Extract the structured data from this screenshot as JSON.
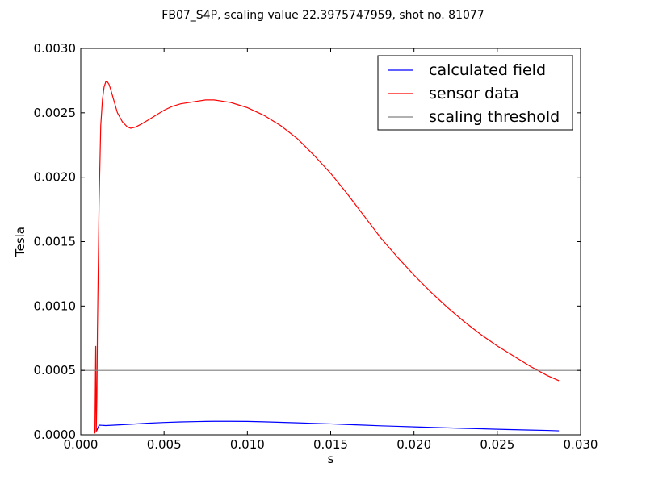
{
  "chart_data": {
    "type": "line",
    "title": "FB07_S4P, scaling value 22.3975747959, shot no. 81077",
    "xlabel": "s",
    "ylabel": "Tesla",
    "xlim": [
      0.0,
      0.03
    ],
    "ylim": [
      0.0,
      0.003
    ],
    "xticks": [
      "0.000",
      "0.005",
      "0.010",
      "0.015",
      "0.020",
      "0.025",
      "0.030"
    ],
    "yticks": [
      "0.0000",
      "0.0005",
      "0.0010",
      "0.0015",
      "0.0020",
      "0.0025",
      "0.0030"
    ],
    "grid": false,
    "legend_position": "top-right",
    "series": [
      {
        "name": "calculated field",
        "color": "#0000ff",
        "x": [
          0.00095,
          0.0011,
          0.0015,
          0.002,
          0.003,
          0.004,
          0.005,
          0.006,
          0.007,
          0.008,
          0.009,
          0.01,
          0.011,
          0.012,
          0.013,
          0.014,
          0.015,
          0.016,
          0.017,
          0.018,
          0.019,
          0.02,
          0.021,
          0.022,
          0.023,
          0.024,
          0.025,
          0.026,
          0.027,
          0.028,
          0.0287
        ],
        "y": [
          3e-05,
          7.5e-05,
          7.2e-05,
          7.5e-05,
          8.2e-05,
          9e-05,
          9.6e-05,
          0.0001,
          0.000103,
          0.000105,
          0.000105,
          0.000104,
          0.000101,
          9.7e-05,
          9.3e-05,
          8.9e-05,
          8.5e-05,
          8e-05,
          7.5e-05,
          7e-05,
          6.6e-05,
          6.2e-05,
          5.8e-05,
          5.4e-05,
          5e-05,
          4.7e-05,
          4.3e-05,
          4e-05,
          3.7e-05,
          3.4e-05,
          3.1e-05
        ]
      },
      {
        "name": "sensor data",
        "color": "#ff0000",
        "x": [
          0.00085,
          0.0009,
          0.00093,
          0.00097,
          0.001,
          0.0011,
          0.0012,
          0.0013,
          0.0014,
          0.0015,
          0.0016,
          0.0017,
          0.0018,
          0.002,
          0.0022,
          0.0025,
          0.0028,
          0.003,
          0.0033,
          0.0036,
          0.004,
          0.0045,
          0.005,
          0.0055,
          0.006,
          0.0065,
          0.007,
          0.0075,
          0.008,
          0.0085,
          0.009,
          0.0095,
          0.01,
          0.011,
          0.012,
          0.013,
          0.014,
          0.015,
          0.016,
          0.017,
          0.018,
          0.019,
          0.02,
          0.021,
          0.022,
          0.023,
          0.024,
          0.025,
          0.026,
          0.027,
          0.028,
          0.0287
        ],
        "y": [
          1e-05,
          0.00069,
          2e-05,
          0.0003,
          0.0008,
          0.0018,
          0.0024,
          0.0026,
          0.0027,
          0.00274,
          0.00274,
          0.00272,
          0.00268,
          0.00259,
          0.0025,
          0.00243,
          0.00239,
          0.00238,
          0.00239,
          0.00241,
          0.00244,
          0.00248,
          0.00252,
          0.00255,
          0.00257,
          0.00258,
          0.00259,
          0.0026,
          0.0026,
          0.00259,
          0.00258,
          0.00256,
          0.00254,
          0.00248,
          0.0024,
          0.0023,
          0.00217,
          0.00203,
          0.00187,
          0.0017,
          0.00153,
          0.00138,
          0.00124,
          0.00111,
          0.00099,
          0.00088,
          0.00078,
          0.00069,
          0.00061,
          0.00053,
          0.00046,
          0.00042
        ]
      },
      {
        "name": "scaling threshold",
        "color": "#808080",
        "x": [
          0.0,
          0.03
        ],
        "y": [
          0.0005,
          0.0005
        ]
      }
    ]
  }
}
